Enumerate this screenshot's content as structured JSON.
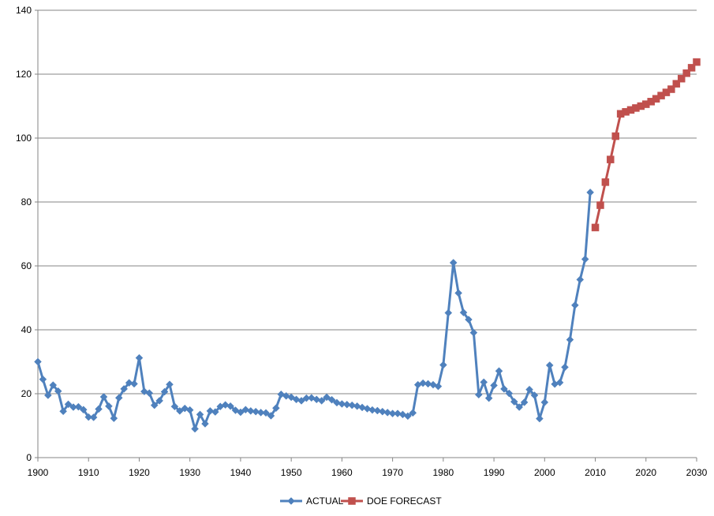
{
  "chart_data": {
    "type": "line",
    "title": "",
    "xlabel": "",
    "ylabel": "",
    "xlim": [
      1900,
      2030
    ],
    "ylim": [
      0,
      140
    ],
    "x_ticks": [
      "1900",
      "1910",
      "1920",
      "1930",
      "1940",
      "1950",
      "1960",
      "1970",
      "1980",
      "1990",
      "2000",
      "2010",
      "2020",
      "2030"
    ],
    "y_ticks": [
      "0",
      "20",
      "40",
      "60",
      "80",
      "100",
      "120",
      "140"
    ],
    "grid": "horizontal",
    "legend_position": "bottom",
    "series": [
      {
        "name": "ACTUAL",
        "color": "#4f81bd",
        "marker": "diamond",
        "points": [
          [
            1900,
            30
          ],
          [
            1901,
            24.5
          ],
          [
            1902,
            19.5
          ],
          [
            1903,
            22.7
          ],
          [
            1904,
            20.8
          ],
          [
            1905,
            14.5
          ],
          [
            1906,
            16.7
          ],
          [
            1907,
            15.8
          ],
          [
            1908,
            15.9
          ],
          [
            1909,
            15
          ],
          [
            1910,
            12.7
          ],
          [
            1911,
            12.6
          ],
          [
            1912,
            15.2
          ],
          [
            1913,
            19
          ],
          [
            1914,
            16.1
          ],
          [
            1915,
            12.3
          ],
          [
            1916,
            18.7
          ],
          [
            1917,
            21.5
          ],
          [
            1918,
            23.4
          ],
          [
            1919,
            23.1
          ],
          [
            1920,
            31.2
          ],
          [
            1921,
            20.7
          ],
          [
            1922,
            20.2
          ],
          [
            1923,
            16.4
          ],
          [
            1924,
            17.8
          ],
          [
            1925,
            20.6
          ],
          [
            1926,
            22.9
          ],
          [
            1927,
            16
          ],
          [
            1928,
            14.6
          ],
          [
            1929,
            15.4
          ],
          [
            1930,
            14.9
          ],
          [
            1931,
            9
          ],
          [
            1932,
            13.5
          ],
          [
            1933,
            10.6
          ],
          [
            1934,
            14.6
          ],
          [
            1935,
            14.3
          ],
          [
            1936,
            16
          ],
          [
            1937,
            16.5
          ],
          [
            1938,
            16.1
          ],
          [
            1939,
            14.8
          ],
          [
            1940,
            14.2
          ],
          [
            1941,
            15
          ],
          [
            1942,
            14.6
          ],
          [
            1943,
            14.4
          ],
          [
            1944,
            14.1
          ],
          [
            1945,
            14
          ],
          [
            1946,
            13.1
          ],
          [
            1947,
            15.5
          ],
          [
            1948,
            19.8
          ],
          [
            1949,
            19.3
          ],
          [
            1950,
            18.9
          ],
          [
            1951,
            18.2
          ],
          [
            1952,
            17.8
          ],
          [
            1953,
            18.6
          ],
          [
            1954,
            18.7
          ],
          [
            1955,
            18.2
          ],
          [
            1956,
            17.8
          ],
          [
            1957,
            18.9
          ],
          [
            1958,
            18.1
          ],
          [
            1959,
            17.2
          ],
          [
            1960,
            16.8
          ],
          [
            1961,
            16.6
          ],
          [
            1962,
            16.4
          ],
          [
            1963,
            16.1
          ],
          [
            1964,
            15.7
          ],
          [
            1965,
            15.3
          ],
          [
            1966,
            14.9
          ],
          [
            1967,
            14.7
          ],
          [
            1968,
            14.4
          ],
          [
            1969,
            14.1
          ],
          [
            1970,
            13.8
          ],
          [
            1971,
            13.8
          ],
          [
            1972,
            13.5
          ],
          [
            1973,
            13
          ],
          [
            1974,
            14
          ],
          [
            1975,
            22.8
          ],
          [
            1976,
            23.3
          ],
          [
            1977,
            23.1
          ],
          [
            1978,
            22.8
          ],
          [
            1979,
            22.3
          ],
          [
            1980,
            29
          ],
          [
            1981,
            45.3
          ],
          [
            1982,
            61
          ],
          [
            1983,
            51.5
          ],
          [
            1984,
            45.4
          ],
          [
            1985,
            43.2
          ],
          [
            1986,
            39.1
          ],
          [
            1987,
            19.7
          ],
          [
            1988,
            23.6
          ],
          [
            1989,
            18.6
          ],
          [
            1990,
            22.6
          ],
          [
            1991,
            27.1
          ],
          [
            1992,
            21.5
          ],
          [
            1993,
            20.1
          ],
          [
            1994,
            17.5
          ],
          [
            1995,
            15.8
          ],
          [
            1996,
            17.3
          ],
          [
            1997,
            21.3
          ],
          [
            1998,
            19.5
          ],
          [
            1999,
            12.2
          ],
          [
            2000,
            17.3
          ],
          [
            2001,
            28.9
          ],
          [
            2002,
            23
          ],
          [
            2003,
            23.5
          ],
          [
            2004,
            28.3
          ],
          [
            2005,
            36.9
          ],
          [
            2006,
            47.7
          ],
          [
            2007,
            55.7
          ],
          [
            2008,
            62.1
          ],
          [
            2009,
            83
          ]
        ]
      },
      {
        "name": "DOE FORECAST",
        "color": "#c0504d",
        "marker": "square",
        "points": [
          [
            2010,
            72
          ],
          [
            2011,
            79
          ],
          [
            2012,
            86.2
          ],
          [
            2013,
            93.3
          ],
          [
            2014,
            100.6
          ],
          [
            2015,
            107.6
          ],
          [
            2016,
            108.2
          ],
          [
            2017,
            108.8
          ],
          [
            2018,
            109.4
          ],
          [
            2019,
            110
          ],
          [
            2020,
            110.6
          ],
          [
            2021,
            111.4
          ],
          [
            2022,
            112.3
          ],
          [
            2023,
            113.3
          ],
          [
            2024,
            114.3
          ],
          [
            2025,
            115.3
          ],
          [
            2026,
            117
          ],
          [
            2027,
            118.6
          ],
          [
            2028,
            120.3
          ],
          [
            2029,
            122
          ],
          [
            2030,
            123.8
          ]
        ]
      }
    ]
  }
}
